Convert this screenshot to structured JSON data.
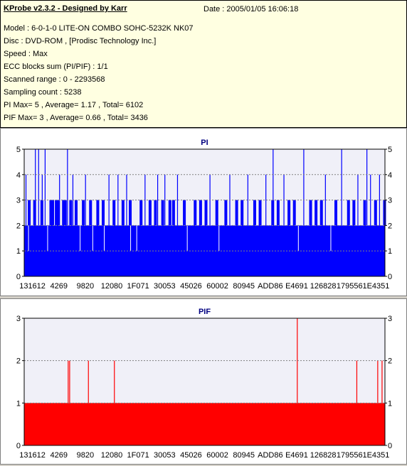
{
  "info": {
    "title": "KProbe v2.3.2 - Designed by Karr",
    "date": "Date : 2005/01/05 16:06:18",
    "lines": [
      "Model : 6-0-1-0 LITE-ON COMBO SOHC-5232K NK07",
      "Disc : DVD-ROM ,  [Prodisc Technology Inc.]",
      "Speed : Max",
      "ECC blocks sum (PI/PIF) : 1/1",
      "Scanned range : 0 - 2293568",
      "Sampling count : 5238",
      "PI Max= 5 , Average= 1.17 , Total= 6102",
      "PIF Max= 3 , Average= 0.66 , Total= 3436"
    ]
  },
  "colors": {
    "pi": "#0000ff",
    "pif": "#ff0000",
    "info_bg": "#ffffe1",
    "grid": "#808080"
  },
  "chart_data": [
    {
      "type": "bar",
      "title": "PI",
      "ylim": [
        0,
        5
      ],
      "yticks": [
        0,
        1,
        2,
        3,
        4,
        5
      ],
      "xticks": [
        "131612",
        "4269",
        "9820",
        "12080",
        "1F071",
        "30053",
        "45026",
        "60002",
        "80945",
        "ADD86",
        "E4691",
        "126828",
        "179556",
        "1E4351"
      ],
      "base": 2,
      "spikes": [
        {
          "x": 0.005,
          "v": 4
        },
        {
          "x": 0.012,
          "v": 1
        },
        {
          "x": 0.031,
          "v": 5
        },
        {
          "x": 0.04,
          "v": 5
        },
        {
          "x": 0.05,
          "v": 4
        },
        {
          "x": 0.058,
          "v": 5
        },
        {
          "x": 0.065,
          "v": 1
        },
        {
          "x": 0.098,
          "v": 4
        },
        {
          "x": 0.12,
          "v": 5
        },
        {
          "x": 0.135,
          "v": 4
        },
        {
          "x": 0.155,
          "v": 1
        },
        {
          "x": 0.17,
          "v": 4
        },
        {
          "x": 0.19,
          "v": 1
        },
        {
          "x": 0.222,
          "v": 1
        },
        {
          "x": 0.235,
          "v": 4
        },
        {
          "x": 0.26,
          "v": 4
        },
        {
          "x": 0.284,
          "v": 4
        },
        {
          "x": 0.295,
          "v": 1
        },
        {
          "x": 0.312,
          "v": 1
        },
        {
          "x": 0.335,
          "v": 4
        },
        {
          "x": 0.37,
          "v": 4
        },
        {
          "x": 0.39,
          "v": 4
        },
        {
          "x": 0.425,
          "v": 4
        },
        {
          "x": 0.452,
          "v": 1
        },
        {
          "x": 0.515,
          "v": 4
        },
        {
          "x": 0.54,
          "v": 1
        },
        {
          "x": 0.57,
          "v": 4
        },
        {
          "x": 0.62,
          "v": 4
        },
        {
          "x": 0.67,
          "v": 4
        },
        {
          "x": 0.69,
          "v": 5
        },
        {
          "x": 0.72,
          "v": 4
        },
        {
          "x": 0.76,
          "v": 1
        },
        {
          "x": 0.775,
          "v": 5
        },
        {
          "x": 0.835,
          "v": 4
        },
        {
          "x": 0.85,
          "v": 1
        },
        {
          "x": 0.88,
          "v": 5
        },
        {
          "x": 0.925,
          "v": 4
        },
        {
          "x": 0.95,
          "v": 5
        },
        {
          "x": 0.96,
          "v": 4
        },
        {
          "x": 0.985,
          "v": 4
        }
      ],
      "threes": [
        0.01,
        0.025,
        0.045,
        0.07,
        0.075,
        0.085,
        0.09,
        0.105,
        0.11,
        0.125,
        0.14,
        0.16,
        0.18,
        0.2,
        0.215,
        0.245,
        0.27,
        0.29,
        0.32,
        0.345,
        0.36,
        0.38,
        0.4,
        0.41,
        0.44,
        0.47,
        0.485,
        0.5,
        0.53,
        0.555,
        0.585,
        0.6,
        0.635,
        0.65,
        0.685,
        0.7,
        0.73,
        0.745,
        0.79,
        0.805,
        0.82,
        0.86,
        0.895,
        0.91,
        0.94,
        0.97,
        0.995
      ]
    },
    {
      "type": "bar",
      "title": "PIF",
      "ylim": [
        0,
        3
      ],
      "yticks": [
        0,
        1,
        2,
        3
      ],
      "xticks": [
        "131612",
        "4269",
        "9820",
        "12080",
        "1F071",
        "30053",
        "45026",
        "60002",
        "80945",
        "ADD86",
        "E4691",
        "126828",
        "179556",
        "1E4351"
      ],
      "base": 1,
      "spikes": [
        {
          "x": 0.122,
          "v": 2
        },
        {
          "x": 0.126,
          "v": 2
        },
        {
          "x": 0.178,
          "v": 2
        },
        {
          "x": 0.25,
          "v": 2
        },
        {
          "x": 0.757,
          "v": 3
        },
        {
          "x": 0.922,
          "v": 2
        },
        {
          "x": 0.98,
          "v": 2
        },
        {
          "x": 0.992,
          "v": 2
        }
      ],
      "threes": []
    }
  ]
}
